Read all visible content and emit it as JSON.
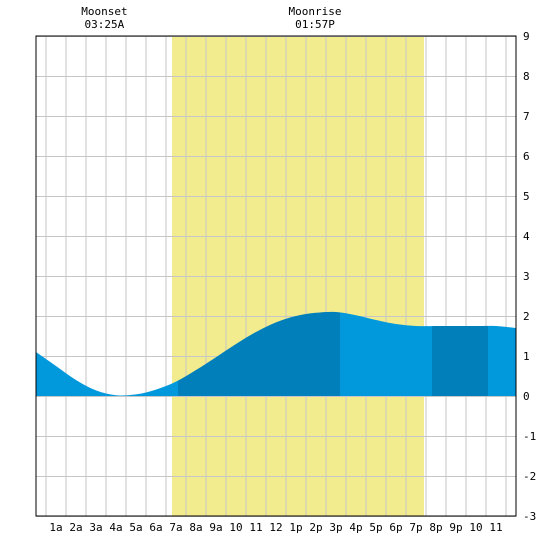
{
  "chart_data": {
    "type": "area",
    "title": "",
    "xlabel": "",
    "ylabel": "",
    "x_tick_labels": [
      "1a",
      "2a",
      "3a",
      "4a",
      "5a",
      "6a",
      "7a",
      "8a",
      "9a",
      "10",
      "11",
      "12",
      "1p",
      "2p",
      "3p",
      "4p",
      "5p",
      "6p",
      "7p",
      "8p",
      "9p",
      "10",
      "11"
    ],
    "y_tick_labels": [
      "9",
      "8",
      "7",
      "6",
      "5",
      "4",
      "3",
      "2",
      "1",
      "0",
      "-1",
      "-2",
      "-3"
    ],
    "xlim_hours": [
      0,
      24
    ],
    "ylim": [
      -3,
      9
    ],
    "grid": true,
    "daylight_hours": [
      6.8,
      19.4
    ],
    "events": [
      {
        "label": "Moonset",
        "time": "03:25A",
        "hour": 3.42
      },
      {
        "label": "Moonrise",
        "time": "01:57P",
        "hour": 13.95
      }
    ],
    "tide_series": {
      "hours": [
        0,
        1,
        2,
        3,
        4,
        5,
        6,
        7,
        8,
        9,
        10,
        11,
        12,
        13,
        14,
        15,
        16,
        17,
        18,
        19,
        20,
        21,
        22,
        23,
        24
      ],
      "values": [
        1.1,
        0.75,
        0.4,
        0.14,
        0.02,
        0.04,
        0.16,
        0.36,
        0.65,
        0.97,
        1.3,
        1.6,
        1.84,
        2.0,
        2.08,
        2.1,
        2.02,
        1.9,
        1.8,
        1.75,
        1.75,
        1.75,
        1.75,
        1.75,
        1.7
      ]
    },
    "tide_bands": [
      {
        "from": 0,
        "to": 7.1,
        "color": "#0299dc"
      },
      {
        "from": 7.1,
        "to": 15.2,
        "color": "#007fba"
      },
      {
        "from": 15.2,
        "to": 19.8,
        "color": "#0299dc"
      },
      {
        "from": 19.8,
        "to": 22.6,
        "color": "#007fba"
      },
      {
        "from": 22.6,
        "to": 24,
        "color": "#0299dc"
      }
    ],
    "colors": {
      "daylight": "#f3ec8e",
      "grid": "#c6c6c6",
      "frame": "#000000",
      "background": "#ffffff"
    }
  }
}
